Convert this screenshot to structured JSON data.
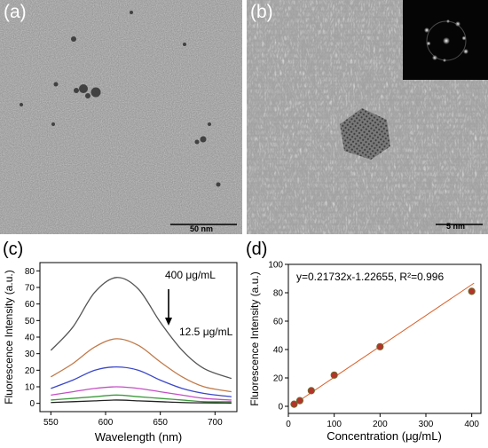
{
  "panels": {
    "a": {
      "letter": "(a)",
      "scale_label": "50 nm"
    },
    "b": {
      "letter": "(b)",
      "scale_label": "5 nm"
    },
    "c": {
      "letter": "(c)"
    },
    "d": {
      "letter": "(d)"
    }
  },
  "chart_data": [
    {
      "type": "line",
      "panel": "(c)",
      "xlabel": "Wavelength (nm)",
      "ylabel": "Fluorescence Intensity (a.u.)",
      "xlim": [
        540,
        720
      ],
      "ylim": [
        -5,
        85
      ],
      "xticks": [
        550,
        600,
        650,
        700
      ],
      "yticks": [
        0,
        10,
        20,
        30,
        40,
        50,
        60,
        70,
        80
      ],
      "annotations": {
        "top": "400 μg/mL",
        "bottom": "12.5 μg/mL"
      },
      "series": [
        {
          "color": "#555555",
          "x": [
            550,
            570,
            590,
            610,
            630,
            650,
            670,
            690,
            715
          ],
          "values": [
            32,
            46,
            67,
            76,
            69,
            49,
            32,
            21,
            15
          ]
        },
        {
          "color": "#c07a4a",
          "x": [
            550,
            570,
            590,
            610,
            630,
            650,
            670,
            690,
            715
          ],
          "values": [
            16,
            24,
            34,
            39,
            35,
            25,
            16,
            10,
            7
          ]
        },
        {
          "color": "#3b47c9",
          "x": [
            550,
            570,
            590,
            610,
            630,
            650,
            670,
            690,
            715
          ],
          "values": [
            9,
            14,
            20,
            22,
            20,
            14,
            9,
            6,
            4
          ]
        },
        {
          "color": "#c44fc4",
          "x": [
            550,
            570,
            590,
            610,
            630,
            650,
            670,
            690,
            715
          ],
          "values": [
            5,
            7,
            9,
            10,
            9,
            7,
            5,
            3,
            2
          ]
        },
        {
          "color": "#3c9a3c",
          "x": [
            550,
            570,
            590,
            610,
            630,
            650,
            670,
            690,
            715
          ],
          "values": [
            2,
            3,
            4,
            5,
            4,
            3,
            2,
            1,
            1
          ]
        },
        {
          "color": "#222222",
          "x": [
            550,
            570,
            590,
            610,
            630,
            650,
            670,
            690,
            715
          ],
          "values": [
            0.5,
            1,
            1.5,
            2,
            1.5,
            1,
            0.5,
            0.3,
            0.2
          ]
        }
      ]
    },
    {
      "type": "scatter",
      "panel": "(d)",
      "xlabel": "Concentration (μg/mL)",
      "ylabel": "Fluorescence Intensity (a.u.)",
      "xlim": [
        0,
        420
      ],
      "ylim": [
        -5,
        100
      ],
      "xticks": [
        0,
        100,
        200,
        300,
        400
      ],
      "yticks": [
        0,
        20,
        40,
        60,
        80,
        100
      ],
      "fit_label": "y=0.21732x-1.22655, R²=0.996",
      "fit": {
        "slope": 0.21732,
        "intercept": -1.22655
      },
      "points": {
        "x": [
          12.5,
          25,
          50,
          100,
          200,
          400
        ],
        "y": [
          1.5,
          4,
          11,
          22,
          42,
          81
        ]
      }
    }
  ]
}
